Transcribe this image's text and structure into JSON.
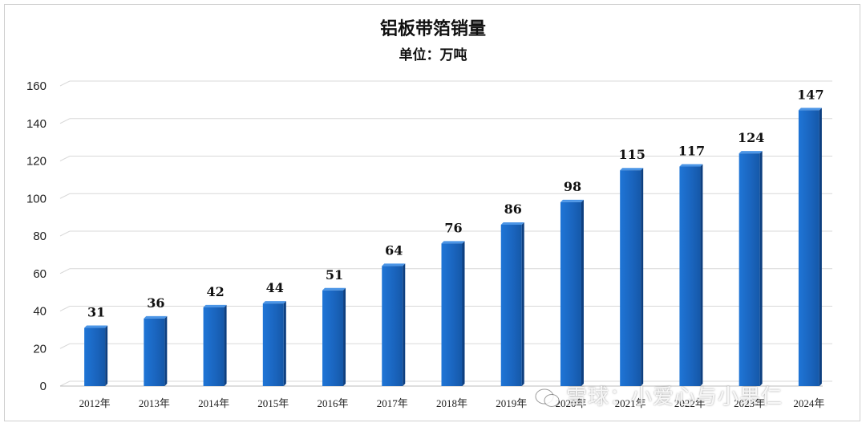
{
  "chart_data": {
    "type": "bar",
    "title": "铝板带箔销量",
    "subtitle": "单位：万吨",
    "categories": [
      "2012年",
      "2013年",
      "2014年",
      "2015年",
      "2016年",
      "2017年",
      "2018年",
      "2019年",
      "2020年",
      "2021年",
      "2022年",
      "2023年",
      "2024年"
    ],
    "values": [
      31,
      36,
      42,
      44,
      51,
      64,
      76,
      86,
      98,
      115,
      117,
      124,
      147
    ],
    "ylim": [
      0,
      160
    ],
    "yticks": [
      0,
      20,
      40,
      60,
      80,
      100,
      120,
      140,
      160
    ],
    "grid": true,
    "data_labels": true,
    "bar_color": "#1f6fc9",
    "bar_side_color": "#0d3f80"
  },
  "watermark": {
    "text": "雪球：小爱心与小果仁",
    "icon": "wechat-icon"
  }
}
